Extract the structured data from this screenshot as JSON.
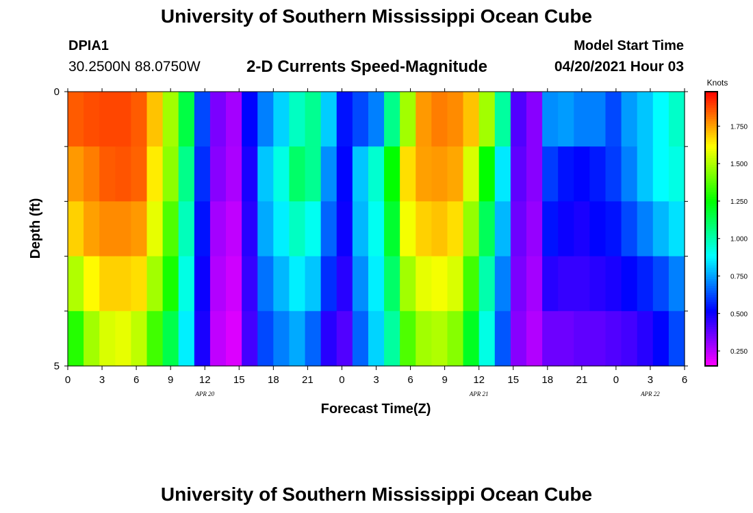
{
  "header": {
    "title": "University of Southern Mississippi Ocean Cube",
    "station_id": "DPIA1",
    "station_coords": "30.2500N  88.0750W",
    "model_start_label": "Model Start Time",
    "model_start_time": "04/20/2021 Hour 03"
  },
  "footer": {
    "title": "University of Southern Mississippi Ocean Cube"
  },
  "chart_data": {
    "type": "heatmap",
    "title": "2-D Currents Speed-Magnitude",
    "xlabel": "Forecast Time(Z)",
    "ylabel": "Depth (ft)",
    "x_hours": [
      0,
      54
    ],
    "xticks": [
      "0",
      "3",
      "6",
      "9",
      "12",
      "15",
      "18",
      "21",
      "0",
      "3",
      "6",
      "9",
      "12",
      "15",
      "18",
      "21",
      "0",
      "3",
      "6"
    ],
    "date_labels": [
      {
        "label": "APR  20",
        "hour": 12
      },
      {
        "label": "APR  21",
        "hour": 36
      },
      {
        "label": "APR  22",
        "hour": 51
      }
    ],
    "yticks": [
      "0",
      "5"
    ],
    "ylim": [
      0,
      5
    ],
    "depth_rows": 5,
    "colorbar": {
      "label": "Knots",
      "min": 0.15,
      "max": 1.98,
      "ticks": [
        "1.750",
        "1.500",
        "1.250",
        "1.000",
        "0.750",
        "0.500",
        "0.250"
      ],
      "tick_values": [
        1.75,
        1.5,
        1.25,
        1.0,
        0.75,
        0.5,
        0.25
      ]
    },
    "speed_knots": [
      [
        1.85,
        1.87,
        1.88,
        1.88,
        1.85,
        1.7,
        1.48,
        1.15,
        0.62,
        0.34,
        0.28,
        0.52,
        0.7,
        0.82,
        0.97,
        1.04,
        0.81,
        0.54,
        0.62,
        0.7,
        1.05,
        1.48,
        1.76,
        1.8,
        1.78,
        1.7,
        1.48,
        1.02,
        0.4,
        0.32,
        0.72,
        0.74,
        0.7,
        0.7,
        0.62,
        0.74,
        0.8,
        0.88,
        0.96
      ],
      [
        1.76,
        1.8,
        1.85,
        1.86,
        1.84,
        1.64,
        1.45,
        1.05,
        0.58,
        0.32,
        0.27,
        0.48,
        0.8,
        0.92,
        1.1,
        1.04,
        0.72,
        0.52,
        0.8,
        0.95,
        1.25,
        1.66,
        1.75,
        1.76,
        1.74,
        1.56,
        1.25,
        0.85,
        0.38,
        0.32,
        0.6,
        0.54,
        0.52,
        0.55,
        0.6,
        0.7,
        0.8,
        0.88,
        0.92
      ],
      [
        1.68,
        1.75,
        1.78,
        1.78,
        1.76,
        1.58,
        1.36,
        0.98,
        0.54,
        0.28,
        0.24,
        0.46,
        0.76,
        0.86,
        0.97,
        0.9,
        0.66,
        0.5,
        0.78,
        0.9,
        1.18,
        1.6,
        1.68,
        1.7,
        1.66,
        1.46,
        1.12,
        0.78,
        0.36,
        0.3,
        0.54,
        0.5,
        0.48,
        0.52,
        0.54,
        0.62,
        0.7,
        0.78,
        0.84
      ],
      [
        1.5,
        1.62,
        1.68,
        1.68,
        1.66,
        1.48,
        1.28,
        0.92,
        0.5,
        0.26,
        0.22,
        0.44,
        0.68,
        0.78,
        0.86,
        0.8,
        0.58,
        0.46,
        0.72,
        0.86,
        1.1,
        1.48,
        1.58,
        1.6,
        1.56,
        1.34,
        1.0,
        0.7,
        0.34,
        0.28,
        0.46,
        0.44,
        0.44,
        0.46,
        0.48,
        0.52,
        0.56,
        0.62,
        0.7
      ],
      [
        1.3,
        1.48,
        1.56,
        1.58,
        1.52,
        1.34,
        1.14,
        0.86,
        0.48,
        0.24,
        0.2,
        0.42,
        0.62,
        0.7,
        0.76,
        0.66,
        0.46,
        0.4,
        0.66,
        0.82,
        1.02,
        1.36,
        1.48,
        1.5,
        1.44,
        1.2,
        0.92,
        0.64,
        0.32,
        0.26,
        0.36,
        0.36,
        0.38,
        0.38,
        0.4,
        0.42,
        0.46,
        0.52,
        0.62
      ]
    ]
  }
}
